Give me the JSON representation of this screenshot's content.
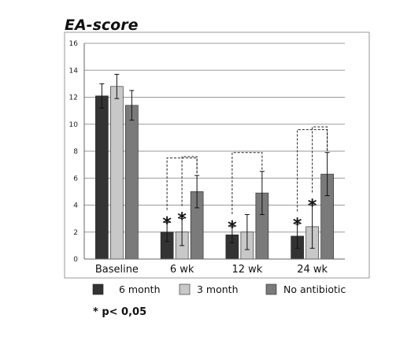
{
  "chart_data": {
    "type": "bar",
    "title": "EA-score",
    "categories": [
      "Baseline",
      "6 wk",
      "12 wk",
      "24 wk"
    ],
    "ylim": [
      0,
      16
    ],
    "yticks": [
      "0",
      "2",
      "4",
      "6",
      "8",
      "10",
      "12",
      "14",
      "16"
    ],
    "grid": true,
    "legend_position": "bottom",
    "series": [
      {
        "name": "6 month",
        "color": "#333333",
        "values": [
          12.1,
          2.0,
          1.8,
          1.7
        ],
        "errors": [
          0.9,
          0.7,
          0.6,
          0.9
        ]
      },
      {
        "name": "3 month",
        "color": "#c8c8c8",
        "values": [
          12.8,
          2.0,
          2.0,
          2.4
        ],
        "errors": [
          0.9,
          1.0,
          1.3,
          1.6
        ]
      },
      {
        "name": "No antibiotic",
        "color": "#7a7a7a",
        "values": [
          11.4,
          5.0,
          4.9,
          6.3
        ],
        "errors": [
          1.1,
          1.2,
          1.6,
          1.6
        ]
      }
    ],
    "significance_marker": "*",
    "significant": [
      {
        "category": 1,
        "series": 0
      },
      {
        "category": 1,
        "series": 1
      },
      {
        "category": 2,
        "series": 0
      },
      {
        "category": 3,
        "series": 0
      },
      {
        "category": 3,
        "series": 1
      }
    ],
    "comparison_brackets": [
      {
        "category": 1,
        "from_series": 0,
        "to_series": 2,
        "level": 7.5
      },
      {
        "category": 1,
        "from_series": 1,
        "to_series": 2,
        "level": 7.6
      },
      {
        "category": 2,
        "from_series": 0,
        "to_series": 2,
        "level": 7.9
      },
      {
        "category": 3,
        "from_series": 0,
        "to_series": 2,
        "level": 9.6
      },
      {
        "category": 3,
        "from_series": 1,
        "to_series": 2,
        "level": 9.8
      }
    ],
    "footnote": "* p< 0,05"
  }
}
